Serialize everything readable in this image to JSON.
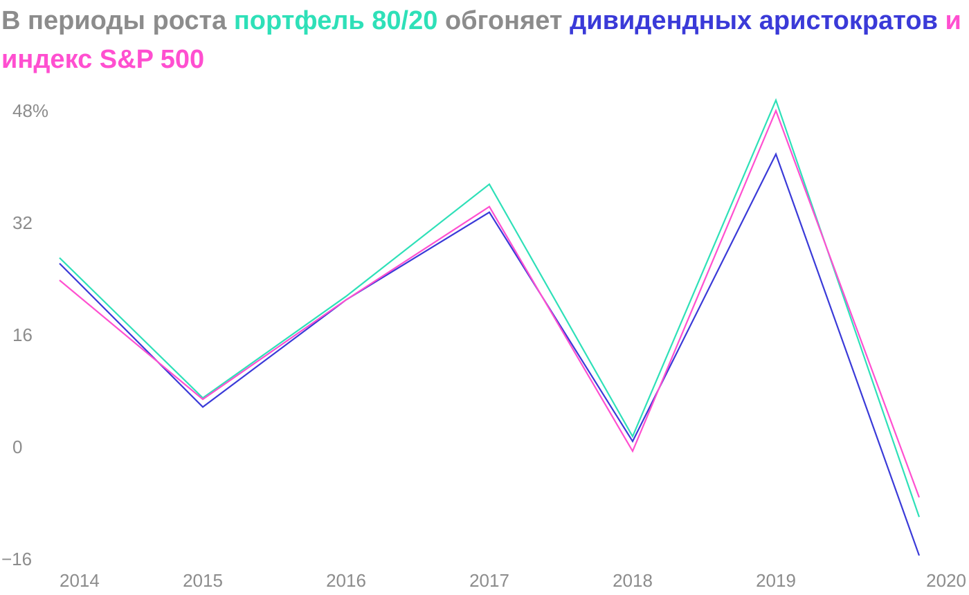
{
  "title": {
    "part1": "В периоды роста ",
    "part2": "портфель 80/20",
    "part3": " обгоняет ",
    "part4": "дивидендных аристократов",
    "part5": " и индекс S&P 500"
  },
  "colors": {
    "gray": "#8c8c8c",
    "portfolio": "#2ee0b8",
    "aristocrats": "#3a3ad8",
    "sp500": "#ff4fd0"
  },
  "chart_data": {
    "type": "line",
    "title": "В периоды роста портфель 80/20 обгоняет дивидендных аристократов и индекс S&P 500",
    "x": [
      2014,
      2015,
      2016,
      2017,
      2018,
      2019,
      2020
    ],
    "x_tick_labels": [
      "2014",
      "2015",
      "2016",
      "2017",
      "2018",
      "2019",
      "2020"
    ],
    "y_ticks": [
      48,
      32,
      16,
      0,
      -16
    ],
    "y_tick_labels": [
      "48%",
      "32",
      "16",
      "0",
      "−16"
    ],
    "ylim": [
      -16,
      48
    ],
    "series": [
      {
        "name": "портфель 80/20",
        "color": "#2ee0b8",
        "values": [
          27.0,
          7.0,
          21.5,
          37.5,
          1.5,
          49.5,
          -10.0
        ]
      },
      {
        "name": "дивидендные аристократы",
        "color": "#3a3ad8",
        "values": [
          26.2,
          5.7,
          21.0,
          33.5,
          0.8,
          41.8,
          -15.5
        ]
      },
      {
        "name": "индекс S&P 500",
        "color": "#ff4fd0",
        "values": [
          23.8,
          6.8,
          21.0,
          34.3,
          -0.6,
          48.0,
          -7.2
        ]
      }
    ]
  }
}
